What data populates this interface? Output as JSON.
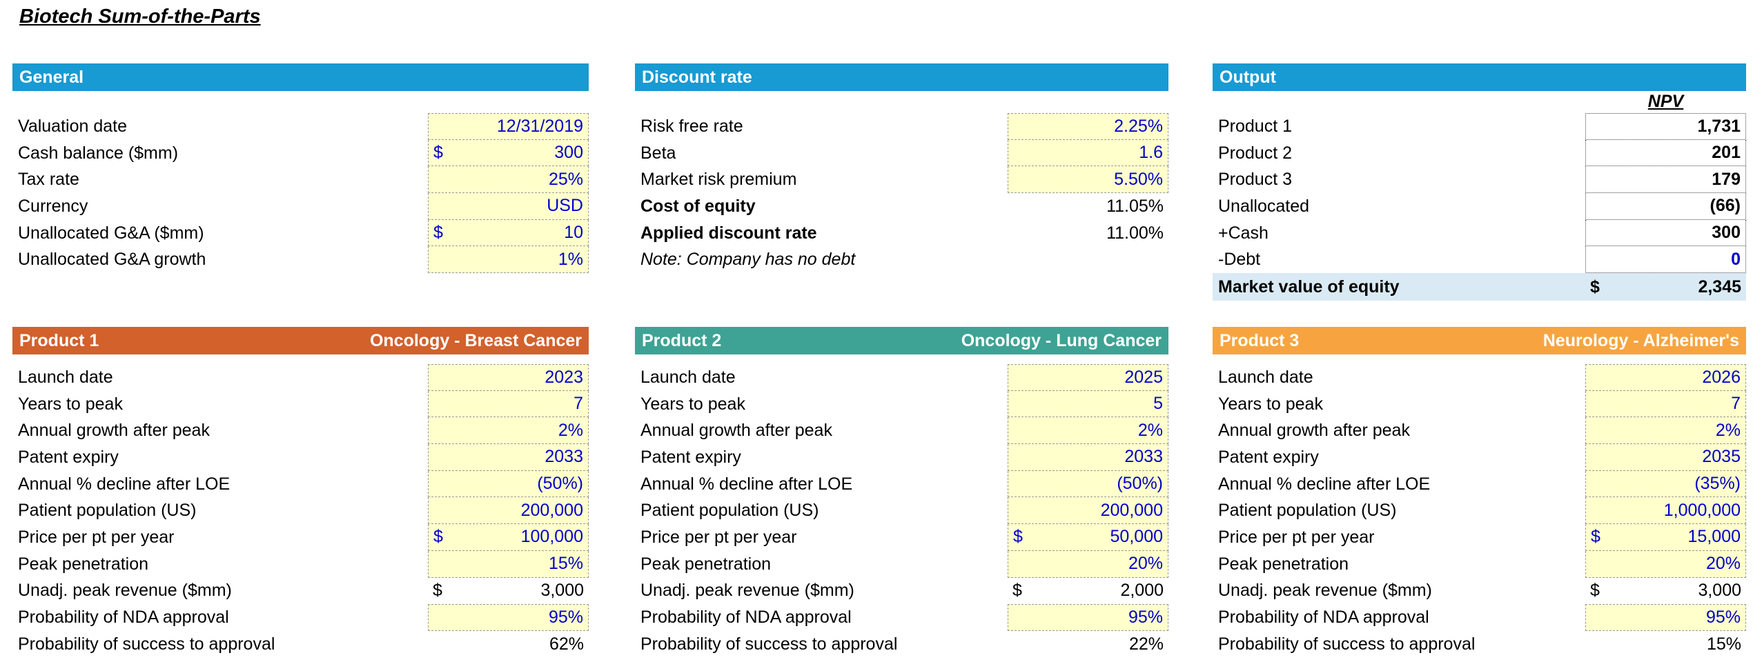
{
  "title": "Biotech Sum-of-the-Parts",
  "colors": {
    "section_header_blue": "#189AD3",
    "product1_header": "#D2612C",
    "product2_header": "#3EA394",
    "product3_header": "#F7A440",
    "input_cell_bg": "#FFFFCC",
    "input_text_blue": "#0000CC",
    "total_row_bg": "#D9EAF5"
  },
  "general": {
    "header": "General",
    "rows": [
      {
        "label": "Valuation date",
        "prefix": "",
        "value": "12/31/2019"
      },
      {
        "label": "Cash balance ($mm)",
        "prefix": "$",
        "value": "300"
      },
      {
        "label": "Tax rate",
        "prefix": "",
        "value": "25%"
      },
      {
        "label": "Currency",
        "prefix": "",
        "value": "USD"
      },
      {
        "label": "Unallocated G&A ($mm)",
        "prefix": "$",
        "value": "10"
      },
      {
        "label": "Unallocated G&A growth",
        "prefix": "",
        "value": "1%"
      }
    ]
  },
  "discount": {
    "header": "Discount rate",
    "rows": [
      {
        "label": "Risk free rate",
        "prefix": "",
        "value": "2.25%"
      },
      {
        "label": "Beta",
        "prefix": "",
        "value": "1.6"
      },
      {
        "label": "Market risk premium",
        "prefix": "",
        "value": "5.50%"
      },
      {
        "label": "Cost of equity",
        "prefix": "",
        "value": "11.05%"
      },
      {
        "label": "Applied discount rate",
        "prefix": "",
        "value": "11.00%"
      }
    ],
    "note": "Note: Company has no debt"
  },
  "output": {
    "header": "Output",
    "npv_label": "NPV",
    "rows": [
      {
        "label": "Product 1",
        "value": "1,731"
      },
      {
        "label": "Product 2",
        "value": "201"
      },
      {
        "label": "Product 3",
        "value": "179"
      },
      {
        "label": "Unallocated",
        "value": "(66)"
      },
      {
        "label": "+Cash",
        "value": "300"
      },
      {
        "label": "-Debt",
        "value": "0"
      }
    ],
    "total": {
      "label": "Market value of equity",
      "prefix": "$",
      "value": "2,345"
    }
  },
  "products": [
    {
      "header": "Product 1",
      "subtitle": "Oncology - Breast Cancer",
      "rows": [
        {
          "label": "Launch date",
          "prefix": "",
          "value": "2023"
        },
        {
          "label": "Years to peak",
          "prefix": "",
          "value": "7"
        },
        {
          "label": "Annual growth after peak",
          "prefix": "",
          "value": "2%"
        },
        {
          "label": "Patent expiry",
          "prefix": "",
          "value": "2033"
        },
        {
          "label": "Annual % decline after LOE",
          "prefix": "",
          "value": "(50%)"
        },
        {
          "label": "Patient population (US)",
          "prefix": "",
          "value": "200,000"
        },
        {
          "label": "Price per pt per year",
          "prefix": "$",
          "value": "100,000"
        },
        {
          "label": "Peak penetration",
          "prefix": "",
          "value": "15%"
        },
        {
          "label": "Unadj. peak revenue ($mm)",
          "prefix": "$",
          "value": "3,000"
        },
        {
          "label": "Probability of NDA approval",
          "prefix": "",
          "value": "95%"
        },
        {
          "label": "Probability of success to approval",
          "prefix": "",
          "value": "62%"
        }
      ]
    },
    {
      "header": "Product 2",
      "subtitle": "Oncology - Lung Cancer",
      "rows": [
        {
          "label": "Launch date",
          "prefix": "",
          "value": "2025"
        },
        {
          "label": "Years to peak",
          "prefix": "",
          "value": "5"
        },
        {
          "label": "Annual growth after peak",
          "prefix": "",
          "value": "2%"
        },
        {
          "label": "Patent expiry",
          "prefix": "",
          "value": "2033"
        },
        {
          "label": "Annual % decline after LOE",
          "prefix": "",
          "value": "(50%)"
        },
        {
          "label": "Patient population (US)",
          "prefix": "",
          "value": "200,000"
        },
        {
          "label": "Price per pt per year",
          "prefix": "$",
          "value": "50,000"
        },
        {
          "label": "Peak penetration",
          "prefix": "",
          "value": "20%"
        },
        {
          "label": "Unadj. peak revenue ($mm)",
          "prefix": "$",
          "value": "2,000"
        },
        {
          "label": "Probability of NDA approval",
          "prefix": "",
          "value": "95%"
        },
        {
          "label": "Probability of success to approval",
          "prefix": "",
          "value": "22%"
        }
      ]
    },
    {
      "header": "Product 3",
      "subtitle": "Neurology - Alzheimer's",
      "rows": [
        {
          "label": "Launch date",
          "prefix": "",
          "value": "2026"
        },
        {
          "label": "Years to peak",
          "prefix": "",
          "value": "7"
        },
        {
          "label": "Annual growth after peak",
          "prefix": "",
          "value": "2%"
        },
        {
          "label": "Patent expiry",
          "prefix": "",
          "value": "2035"
        },
        {
          "label": "Annual % decline after LOE",
          "prefix": "",
          "value": "(35%)"
        },
        {
          "label": "Patient population (US)",
          "prefix": "",
          "value": "1,000,000"
        },
        {
          "label": "Price per pt per year",
          "prefix": "$",
          "value": "15,000"
        },
        {
          "label": "Peak penetration",
          "prefix": "",
          "value": "20%"
        },
        {
          "label": "Unadj. peak revenue ($mm)",
          "prefix": "$",
          "value": "3,000"
        },
        {
          "label": "Probability of NDA approval",
          "prefix": "",
          "value": "95%"
        },
        {
          "label": "Probability of success to approval",
          "prefix": "",
          "value": "15%"
        }
      ]
    }
  ]
}
